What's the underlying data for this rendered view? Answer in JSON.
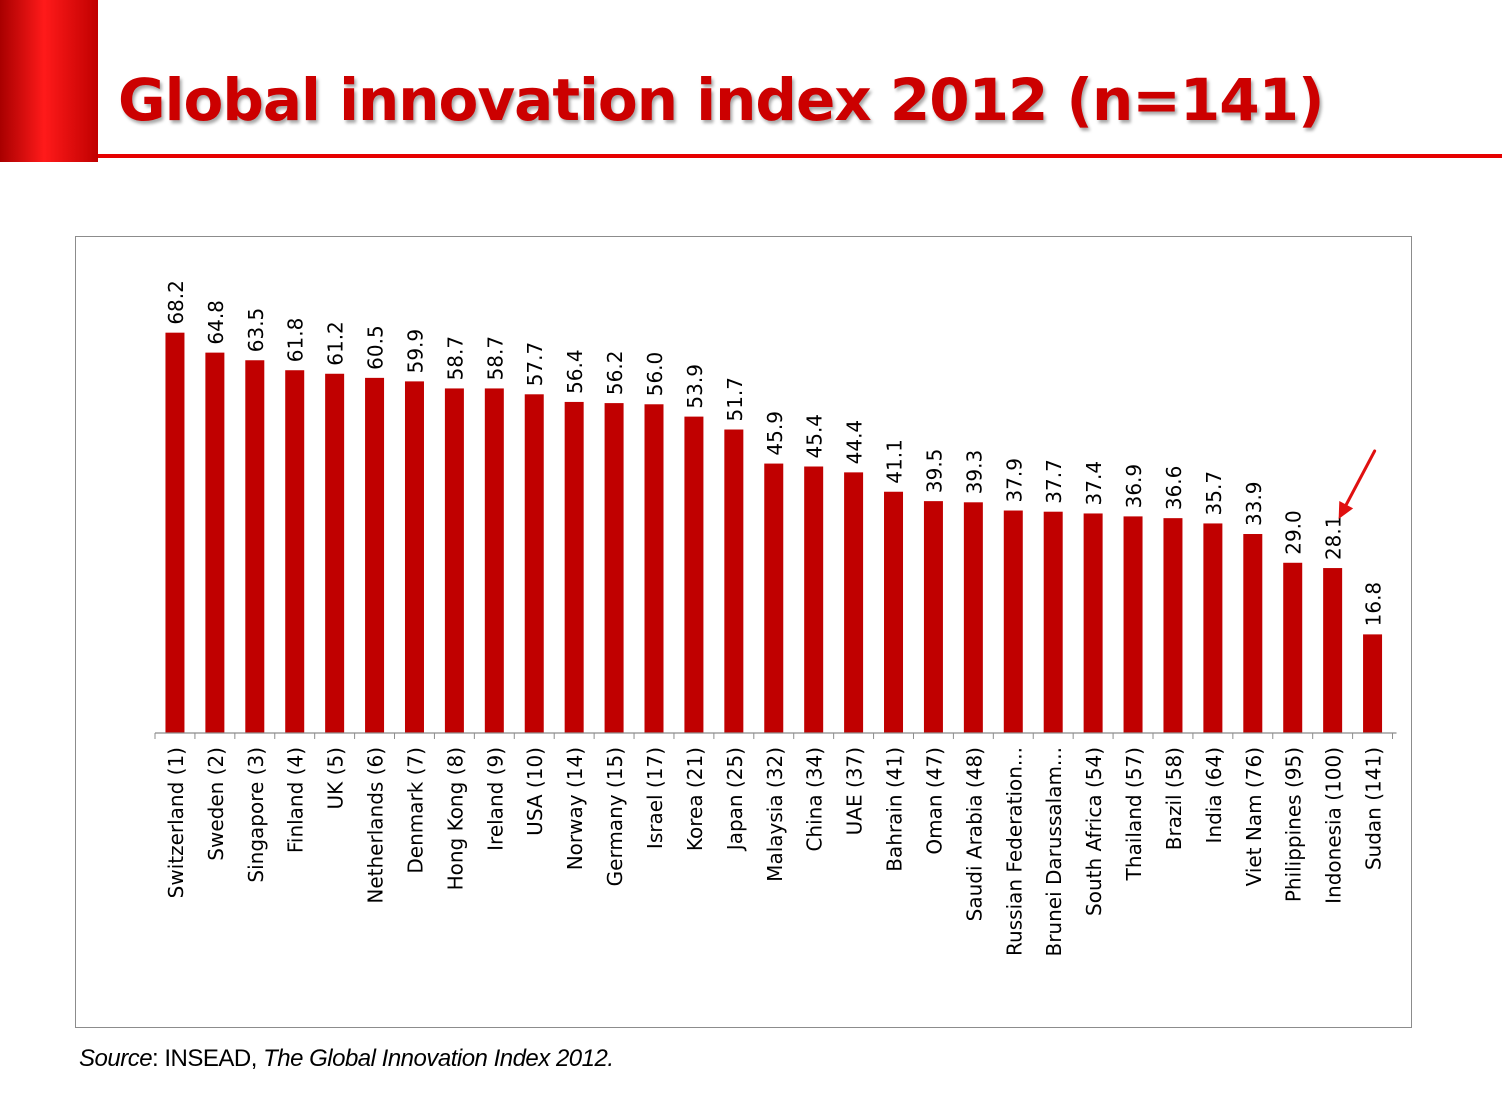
{
  "title": "Global innovation index 2012 (n=141)",
  "source": {
    "label": "Source",
    "separator": ": INSEAD, ",
    "publication": "The Global Innovation Index 2012."
  },
  "colors": {
    "bar": "#c00000",
    "title": "#cc0000",
    "accent": "#e60000",
    "arrow": "#e01010",
    "axis": "#8c8c8c"
  },
  "chart_data": {
    "type": "bar",
    "title": "Global innovation index 2012 (n=141)",
    "xlabel": "",
    "ylabel": "",
    "ylim": [
      0,
      70
    ],
    "grid": false,
    "legend": "none",
    "categories": [
      "Switzerland (1)",
      "Sweden (2)",
      "Singapore (3)",
      "Finland (4)",
      "UK (5)",
      "Netherlands (6)",
      "Denmark (7)",
      "Hong Kong (8)",
      "Ireland (9)",
      "USA (10)",
      "Norway (14)",
      "Germany (15)",
      "Israel (17)",
      "Korea (21)",
      "Japan (25)",
      "Malaysia (32)",
      "China (34)",
      "UAE (37)",
      "Bahrain (41)",
      "Oman (47)",
      "Saudi Arabia (48)",
      "Russian Federation...",
      "Brunei Darussalam...",
      "South Africa (54)",
      "Thailand (57)",
      "Brazil (58)",
      "India (64)",
      "Viet Nam (76)",
      "Philippines (95)",
      "Indonesia (100)",
      "Sudan (141)"
    ],
    "values": [
      68.2,
      64.8,
      63.5,
      61.8,
      61.2,
      60.5,
      59.9,
      58.7,
      58.7,
      57.7,
      56.4,
      56.2,
      56.0,
      53.9,
      51.7,
      45.9,
      45.4,
      44.4,
      41.1,
      39.5,
      39.3,
      37.9,
      37.7,
      37.4,
      36.9,
      36.6,
      35.7,
      33.9,
      29.0,
      28.1,
      16.8
    ],
    "data_labels": [
      "68.2",
      "64.8",
      "63.5",
      "61.8",
      "61.2",
      "60.5",
      "59.9",
      "58.7",
      "58.7",
      "57.7",
      "56.4",
      "56.2",
      "56.0",
      "53.9",
      "51.7",
      "45.9",
      "45.4",
      "44.4",
      "41.1",
      "39.5",
      "39.3",
      "37.9",
      "37.7",
      "37.4",
      "36.9",
      "36.6",
      "35.7",
      "33.9",
      "29.0",
      "28.1",
      "16.8"
    ],
    "annotation": {
      "type": "arrow",
      "points_to": "Indonesia (100)"
    }
  }
}
